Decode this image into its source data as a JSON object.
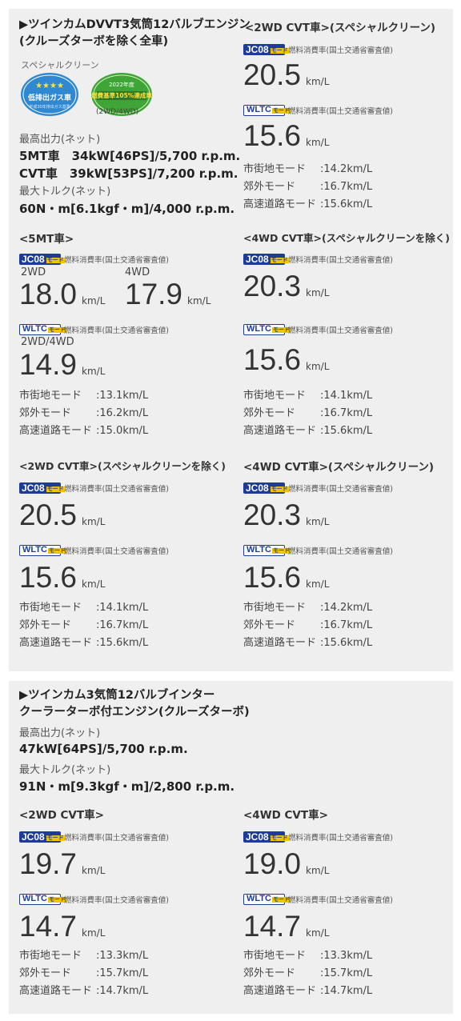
{
  "engine1": {
    "title_line1": "▶ツインカムDVVT3気筒12バルブエンジン",
    "title_line2": "(クルーズターボを除く全車)",
    "label_special_clean": "スペシャルクリーン",
    "badge_low_emission": "低排出ガス車",
    "badge_fuel_year": "2022年度",
    "badge_fuel_text": "燃費基準105%達成車",
    "badge_note": "(2WD/4WD)",
    "max_output_label": "最高出力(ネット)",
    "output_5mt": "5MT車　34kW[46PS]/5,700 r.p.m.",
    "output_cvt": "CVT車　39kW[53PS]/7,200 r.p.m.",
    "max_torque_label": "最大トルク(ネット)",
    "torque": "60N・m[6.1kgf・m]/4,000 r.p.m."
  },
  "badges": {
    "jc08": "JC08",
    "wltc": "WLTC",
    "mode": "モード",
    "desc": "燃料消費率(国土交通省審査値)"
  },
  "unit": "km/L",
  "mode_labels": {
    "city": "市街地モード",
    "suburb": "郊外モード",
    "highway": "高速道路モード"
  },
  "mt5": {
    "title": "<5MT車>",
    "label_2wd": "2WD",
    "jc08_2wd": "18.0",
    "label_4wd": "4WD",
    "jc08_4wd": "17.9",
    "wltc_label": "2WD/4WD",
    "wltc": "14.9",
    "city": ":13.1km/L",
    "suburb": ":16.2km/L",
    "highway": ":15.0km/L"
  },
  "cvt2wd_special": {
    "title": "<2WD CVT車>(スペシャルクリーン)",
    "jc08": "20.5",
    "wltc": "15.6",
    "city": ":14.2km/L",
    "suburb": ":16.7km/L",
    "highway": ":15.6km/L"
  },
  "cvt4wd_exspecial": {
    "title": "<4WD CVT車>(スペシャルクリーンを除く)",
    "jc08": "20.3",
    "wltc": "15.6",
    "city": ":14.1km/L",
    "suburb": ":16.7km/L",
    "highway": ":15.6km/L"
  },
  "cvt2wd_exspecial": {
    "title": "<2WD CVT車>(スペシャルクリーンを除く)",
    "jc08": "20.5",
    "wltc": "15.6",
    "city": ":14.1km/L",
    "suburb": ":16.7km/L",
    "highway": ":15.6km/L"
  },
  "cvt4wd_special": {
    "title": "<4WD CVT車>(スペシャルクリーン)",
    "jc08": "20.3",
    "wltc": "15.6",
    "city": ":14.2km/L",
    "suburb": ":16.7km/L",
    "highway": ":15.6km/L"
  },
  "engine2": {
    "title_line1": "▶ツインカム3気筒12バルブインター",
    "title_line2": "クーラーターボ付エンジン(クルーズターボ)",
    "max_output_label": "最高出力(ネット)",
    "output": "47kW[64PS]/5,700 r.p.m.",
    "max_torque_label": "最大トルク(ネット)",
    "torque": "91N・m[9.3kgf・m]/2,800 r.p.m."
  },
  "turbo2wd": {
    "title": "<2WD CVT車>",
    "jc08": "19.7",
    "wltc": "14.7",
    "city": ":13.3km/L",
    "suburb": ":15.7km/L",
    "highway": ":14.7km/L"
  },
  "turbo4wd": {
    "title": "<4WD CVT車>",
    "jc08": "19.0",
    "wltc": "14.7",
    "city": ":13.3km/L",
    "suburb": ":15.7km/L",
    "highway": ":14.7km/L"
  },
  "colors": {
    "panel_bg": "#efefef",
    "jc08_blue": "#1d3c9a",
    "mode_yellow": "#f0c400",
    "green_badge": "#3fa536",
    "blue_badge": "#2f88d0"
  }
}
